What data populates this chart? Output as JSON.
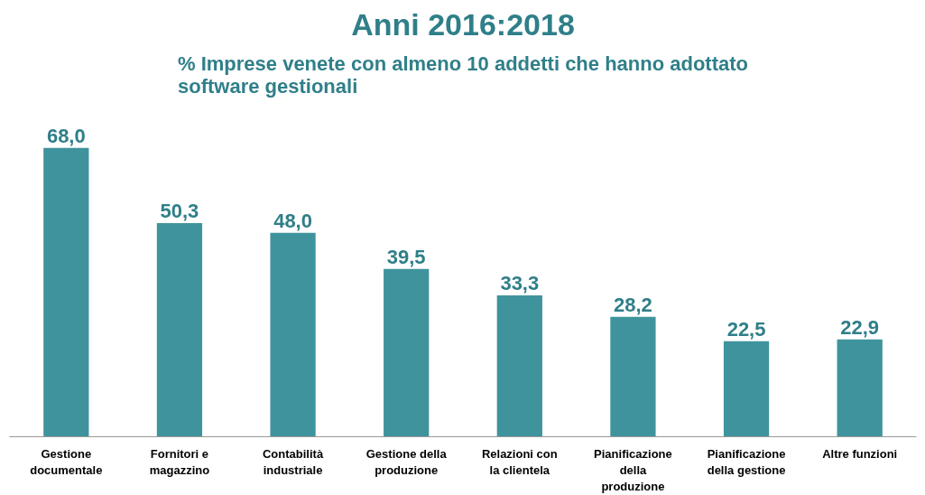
{
  "chart_data": {
    "type": "bar",
    "title": "Anni 2016:2018",
    "subtitle": "% Imprese venete con almeno 10 addetti che hanno adottato software gestionali",
    "categories": [
      "Gestione documentale",
      "Fornitori e magazzino",
      "Contabilità industriale",
      "Gestione della produzione",
      "Relazioni con la clientela",
      "Pianificazione della produzione",
      "Pianificazione della gestione",
      "Altre funzioni"
    ],
    "values": [
      68.0,
      50.3,
      48.0,
      39.5,
      33.3,
      28.2,
      22.5,
      22.9
    ],
    "value_labels": [
      "68,0",
      "50,3",
      "48,0",
      "39,5",
      "33,3",
      "28,2",
      "22,5",
      "22,9"
    ],
    "color": "#3f939d",
    "grid": false
  }
}
